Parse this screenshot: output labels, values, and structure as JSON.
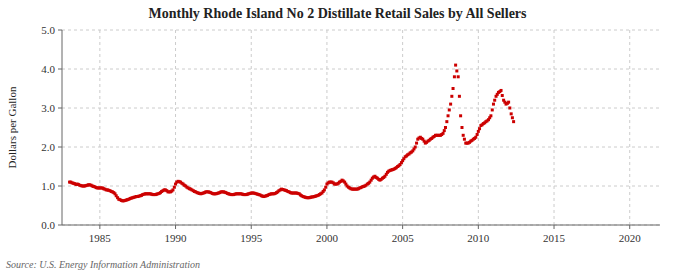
{
  "chart_data": {
    "type": "scatter",
    "title": "Monthly Rhode Island No 2 Distillate Retail Sales by All Sellers",
    "ylabel": "Dollars per Gallon",
    "source": "Source: U.S. Energy Information Administration",
    "color": "#CC0000",
    "marker": "square",
    "grid": true,
    "xlim": [
      1982.5,
      2022
    ],
    "ylim": [
      0.0,
      5.0
    ],
    "xticks": [
      1985,
      1990,
      1995,
      2000,
      2005,
      2010,
      2015,
      2020
    ],
    "yticks": [
      {
        "value": 0.0,
        "label": "0.0"
      },
      {
        "value": 1.0,
        "label": "1.0"
      },
      {
        "value": 2.0,
        "label": "2.0"
      },
      {
        "value": 3.0,
        "label": "3.0"
      },
      {
        "value": 4.0,
        "label": "4.0"
      },
      {
        "value": 5.0,
        "label": "5.0"
      }
    ],
    "x": [
      1983.0,
      1983.08,
      1983.17,
      1983.25,
      1983.33,
      1983.42,
      1983.5,
      1983.58,
      1983.67,
      1983.75,
      1983.83,
      1983.92,
      1984.0,
      1984.08,
      1984.17,
      1984.25,
      1984.33,
      1984.42,
      1984.5,
      1984.58,
      1984.67,
      1984.75,
      1984.83,
      1984.92,
      1985.0,
      1985.08,
      1985.17,
      1985.25,
      1985.33,
      1985.42,
      1985.5,
      1985.58,
      1985.67,
      1985.75,
      1985.83,
      1985.92,
      1986.0,
      1986.08,
      1986.17,
      1986.25,
      1986.33,
      1986.42,
      1986.5,
      1986.58,
      1986.67,
      1986.75,
      1986.83,
      1986.92,
      1987.0,
      1987.08,
      1987.17,
      1987.25,
      1987.33,
      1987.42,
      1987.5,
      1987.58,
      1987.67,
      1987.75,
      1987.83,
      1987.92,
      1988.0,
      1988.08,
      1988.17,
      1988.25,
      1988.33,
      1988.42,
      1988.5,
      1988.58,
      1988.67,
      1988.75,
      1988.83,
      1988.92,
      1989.0,
      1989.08,
      1989.17,
      1989.25,
      1989.33,
      1989.42,
      1989.5,
      1989.58,
      1989.67,
      1989.75,
      1989.83,
      1989.92,
      1990.0,
      1990.08,
      1990.17,
      1990.25,
      1990.33,
      1990.42,
      1990.5,
      1990.58,
      1990.67,
      1990.75,
      1990.83,
      1990.92,
      1991.0,
      1991.08,
      1991.17,
      1991.25,
      1991.33,
      1991.42,
      1991.5,
      1991.58,
      1991.67,
      1991.75,
      1991.83,
      1991.92,
      1992.0,
      1992.08,
      1992.17,
      1992.25,
      1992.33,
      1992.42,
      1992.5,
      1992.58,
      1992.67,
      1992.75,
      1992.83,
      1992.92,
      1993.0,
      1993.08,
      1993.17,
      1993.25,
      1993.33,
      1993.42,
      1993.5,
      1993.58,
      1993.67,
      1993.75,
      1993.83,
      1993.92,
      1994.0,
      1994.08,
      1994.17,
      1994.25,
      1994.33,
      1994.42,
      1994.5,
      1994.58,
      1994.67,
      1994.75,
      1994.83,
      1994.92,
      1995.0,
      1995.08,
      1995.17,
      1995.25,
      1995.33,
      1995.42,
      1995.5,
      1995.58,
      1995.67,
      1995.75,
      1995.83,
      1995.92,
      1996.0,
      1996.08,
      1996.17,
      1996.25,
      1996.33,
      1996.42,
      1996.5,
      1996.58,
      1996.67,
      1996.75,
      1996.83,
      1996.92,
      1997.0,
      1997.08,
      1997.17,
      1997.25,
      1997.33,
      1997.42,
      1997.5,
      1997.58,
      1997.67,
      1997.75,
      1997.83,
      1997.92,
      1998.0,
      1998.08,
      1998.17,
      1998.25,
      1998.33,
      1998.42,
      1998.5,
      1998.58,
      1998.67,
      1998.75,
      1998.83,
      1998.92,
      1999.0,
      1999.08,
      1999.17,
      1999.25,
      1999.33,
      1999.42,
      1999.5,
      1999.58,
      1999.67,
      1999.75,
      1999.83,
      1999.92,
      2000.0,
      2000.08,
      2000.17,
      2000.25,
      2000.33,
      2000.42,
      2000.5,
      2000.58,
      2000.67,
      2000.75,
      2000.83,
      2000.92,
      2001.0,
      2001.08,
      2001.17,
      2001.25,
      2001.33,
      2001.42,
      2001.5,
      2001.58,
      2001.67,
      2001.75,
      2001.83,
      2001.92,
      2002.0,
      2002.08,
      2002.17,
      2002.25,
      2002.33,
      2002.42,
      2002.5,
      2002.58,
      2002.67,
      2002.75,
      2002.83,
      2002.92,
      2003.0,
      2003.08,
      2003.17,
      2003.25,
      2003.33,
      2003.42,
      2003.5,
      2003.58,
      2003.67,
      2003.75,
      2003.83,
      2003.92,
      2004.0,
      2004.08,
      2004.17,
      2004.25,
      2004.33,
      2004.42,
      2004.5,
      2004.58,
      2004.67,
      2004.75,
      2004.83,
      2004.92,
      2005.0,
      2005.08,
      2005.17,
      2005.25,
      2005.33,
      2005.42,
      2005.5,
      2005.58,
      2005.67,
      2005.75,
      2005.83,
      2005.92,
      2006.0,
      2006.08,
      2006.17,
      2006.25,
      2006.33,
      2006.42,
      2006.5,
      2006.58,
      2006.67,
      2006.75,
      2006.83,
      2006.92,
      2007.0,
      2007.08,
      2007.17,
      2007.25,
      2007.33,
      2007.42,
      2007.5,
      2007.58,
      2007.67,
      2007.75,
      2007.83,
      2007.92,
      2008.0,
      2008.08,
      2008.17,
      2008.25,
      2008.33,
      2008.42,
      2008.5,
      2008.58,
      2008.67,
      2008.75,
      2008.83,
      2008.92,
      2009.0,
      2009.08,
      2009.17,
      2009.25,
      2009.33,
      2009.42,
      2009.5,
      2009.58,
      2009.67,
      2009.75,
      2009.83,
      2009.92,
      2010.0,
      2010.08,
      2010.17,
      2010.25,
      2010.33,
      2010.42,
      2010.5,
      2010.58,
      2010.67,
      2010.75,
      2010.83,
      2010.92,
      2011.0,
      2011.08,
      2011.17,
      2011.25,
      2011.33,
      2011.42,
      2011.5,
      2011.58,
      2011.67,
      2011.75,
      2011.83,
      2011.92,
      2012.0,
      2012.08,
      2012.17,
      2012.25,
      2012.33
    ],
    "values": [
      1.1,
      1.1,
      1.08,
      1.07,
      1.06,
      1.04,
      1.05,
      1.04,
      1.02,
      1.01,
      1.0,
      1.0,
      1.0,
      1.01,
      1.02,
      1.03,
      1.03,
      1.02,
      1.0,
      0.99,
      0.98,
      0.96,
      0.95,
      0.95,
      0.95,
      0.95,
      0.95,
      0.93,
      0.92,
      0.9,
      0.9,
      0.89,
      0.88,
      0.86,
      0.85,
      0.83,
      0.8,
      0.75,
      0.7,
      0.66,
      0.65,
      0.63,
      0.62,
      0.62,
      0.63,
      0.64,
      0.65,
      0.66,
      0.68,
      0.69,
      0.7,
      0.71,
      0.72,
      0.73,
      0.73,
      0.74,
      0.75,
      0.76,
      0.78,
      0.79,
      0.8,
      0.8,
      0.8,
      0.8,
      0.8,
      0.79,
      0.78,
      0.78,
      0.78,
      0.79,
      0.8,
      0.81,
      0.83,
      0.86,
      0.88,
      0.9,
      0.9,
      0.88,
      0.85,
      0.85,
      0.85,
      0.87,
      0.9,
      0.97,
      1.05,
      1.1,
      1.12,
      1.11,
      1.1,
      1.07,
      1.05,
      1.02,
      1.0,
      0.97,
      0.95,
      0.93,
      0.92,
      0.9,
      0.88,
      0.86,
      0.85,
      0.83,
      0.82,
      0.81,
      0.8,
      0.81,
      0.82,
      0.83,
      0.85,
      0.85,
      0.85,
      0.84,
      0.83,
      0.81,
      0.8,
      0.8,
      0.8,
      0.81,
      0.82,
      0.83,
      0.85,
      0.85,
      0.85,
      0.84,
      0.83,
      0.81,
      0.8,
      0.79,
      0.78,
      0.78,
      0.78,
      0.79,
      0.8,
      0.8,
      0.8,
      0.8,
      0.8,
      0.79,
      0.78,
      0.78,
      0.78,
      0.79,
      0.8,
      0.81,
      0.82,
      0.82,
      0.82,
      0.81,
      0.8,
      0.79,
      0.78,
      0.77,
      0.75,
      0.74,
      0.73,
      0.74,
      0.75,
      0.76,
      0.78,
      0.79,
      0.8,
      0.8,
      0.8,
      0.81,
      0.83,
      0.85,
      0.88,
      0.9,
      0.92,
      0.91,
      0.9,
      0.89,
      0.88,
      0.86,
      0.85,
      0.83,
      0.82,
      0.82,
      0.82,
      0.82,
      0.82,
      0.81,
      0.8,
      0.77,
      0.75,
      0.73,
      0.72,
      0.71,
      0.7,
      0.7,
      0.7,
      0.71,
      0.72,
      0.72,
      0.73,
      0.74,
      0.75,
      0.76,
      0.78,
      0.8,
      0.82,
      0.86,
      0.9,
      0.97,
      1.05,
      1.08,
      1.1,
      1.1,
      1.1,
      1.08,
      1.05,
      1.05,
      1.05,
      1.07,
      1.1,
      1.12,
      1.15,
      1.13,
      1.1,
      1.05,
      1.0,
      0.97,
      0.95,
      0.93,
      0.92,
      0.92,
      0.92,
      0.92,
      0.92,
      0.93,
      0.95,
      0.96,
      0.98,
      0.99,
      1.0,
      1.02,
      1.05,
      1.07,
      1.1,
      1.15,
      1.2,
      1.23,
      1.25,
      1.22,
      1.2,
      1.17,
      1.15,
      1.17,
      1.2,
      1.22,
      1.25,
      1.3,
      1.35,
      1.38,
      1.4,
      1.41,
      1.42,
      1.43,
      1.45,
      1.47,
      1.5,
      1.52,
      1.55,
      1.6,
      1.65,
      1.7,
      1.75,
      1.77,
      1.8,
      1.82,
      1.85,
      1.87,
      1.9,
      1.95,
      2.0,
      2.1,
      2.2,
      2.23,
      2.25,
      2.22,
      2.2,
      2.15,
      2.1,
      2.12,
      2.15,
      2.17,
      2.2,
      2.22,
      2.25,
      2.27,
      2.3,
      2.3,
      2.3,
      2.3,
      2.3,
      2.32,
      2.35,
      2.42,
      2.5,
      2.65,
      2.8,
      2.95,
      3.1,
      3.3,
      3.5,
      3.8,
      4.1,
      3.95,
      3.8,
      3.3,
      2.8,
      2.5,
      2.3,
      2.2,
      2.1,
      2.1,
      2.1,
      2.12,
      2.15,
      2.17,
      2.2,
      2.22,
      2.25,
      2.32,
      2.4,
      2.47,
      2.55,
      2.57,
      2.6,
      2.62,
      2.65,
      2.67,
      2.7,
      2.75,
      2.8,
      2.95,
      3.1,
      3.2,
      3.3,
      3.35,
      3.4,
      3.42,
      3.45,
      3.32,
      3.2,
      3.15,
      3.1,
      3.12,
      3.15,
      3.0,
      2.85,
      2.75,
      2.65
    ]
  }
}
